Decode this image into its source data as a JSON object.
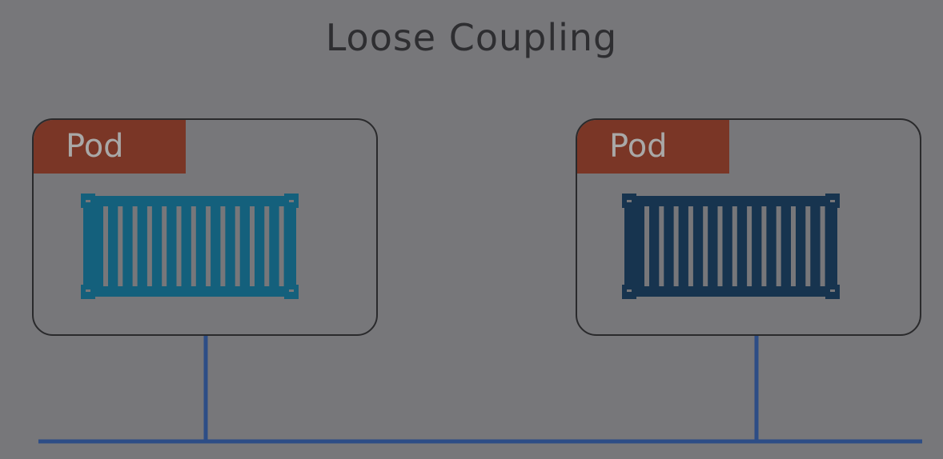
{
  "title": "Loose Coupling",
  "pods": [
    {
      "label": "Pod",
      "container_color": "#14607c"
    },
    {
      "label": "Pod",
      "container_color": "#17344f"
    }
  ],
  "colors": {
    "background": "#77777a",
    "pod_tab": "#7a3626",
    "network_line": "#2d4d86"
  }
}
